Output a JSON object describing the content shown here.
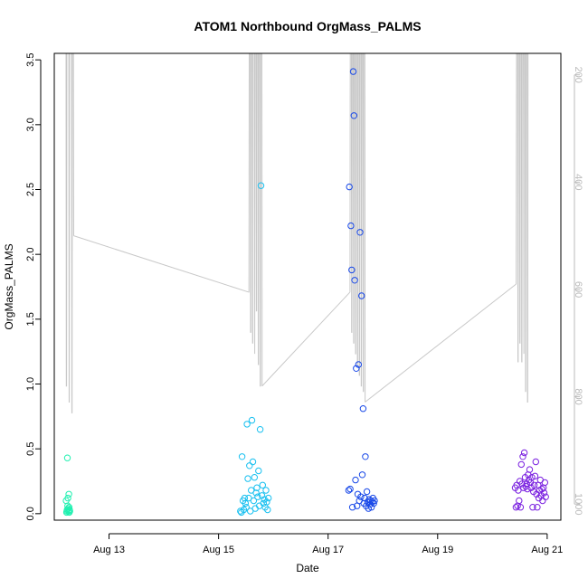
{
  "chart_data": {
    "type": "scatter",
    "title": "ATOM1 Northbound OrgMass_PALMS",
    "xlabel": "Date",
    "ylabel": "OrgMass_PALMS",
    "x_ticks": [
      "Aug 13",
      "Aug 15",
      "Aug 17",
      "Aug 19",
      "Aug 21"
    ],
    "y_ticks": [
      "0.0",
      "0.5",
      "1.0",
      "1.5",
      "2.0",
      "2.5",
      "3.0",
      "3.5"
    ],
    "y2_ticks": [
      "200",
      "400",
      "600",
      "800",
      "1000"
    ],
    "xlim": [
      "2016-08-12T00:00",
      "2016-08-21T06:00"
    ],
    "ylim": [
      -0.05,
      3.55
    ],
    "y2lim": [
      1030,
      160
    ],
    "y2_reversed": true,
    "grid": false,
    "colors": {
      "axis": "#000000",
      "secondary_axis": "#bbbbbb",
      "altitude_line": "#c8c8c8",
      "series": [
        "#00ffc0",
        "#00c8ff",
        "#0040ff",
        "#8000ff"
      ]
    },
    "series": [
      {
        "color": "#20f0b0",
        "x": [
          "2016-08-12T05:12",
          "2016-08-12T05:24",
          "2016-08-12T05:31",
          "2016-08-12T05:38",
          "2016-08-12T05:46",
          "2016-08-12T05:53",
          "2016-08-12T06:00",
          "2016-08-12T06:07",
          "2016-08-12T06:14",
          "2016-08-12T06:22",
          "2016-08-12T06:29",
          "2016-08-12T06:36",
          "2016-08-12T06:43",
          "2016-08-12T06:50"
        ],
        "y": [
          0.1,
          0.01,
          0.02,
          0.03,
          0.43,
          0.06,
          0.12,
          0.04,
          0.02,
          0.15,
          0.05,
          0.01,
          0.03,
          0.02
        ]
      },
      {
        "color": "#18c0f0",
        "x": [
          "2016-08-15T09:36",
          "2016-08-15T09:58",
          "2016-08-15T10:19",
          "2016-08-15T10:41",
          "2016-08-15T11:02",
          "2016-08-15T11:24",
          "2016-08-15T11:46",
          "2016-08-15T12:07",
          "2016-08-15T12:29",
          "2016-08-15T12:50",
          "2016-08-15T13:12",
          "2016-08-15T13:34",
          "2016-08-15T13:55",
          "2016-08-15T14:17",
          "2016-08-15T14:38",
          "2016-08-15T15:00",
          "2016-08-15T15:22",
          "2016-08-15T15:43",
          "2016-08-15T16:05",
          "2016-08-15T16:26",
          "2016-08-15T16:48",
          "2016-08-15T17:10",
          "2016-08-15T17:31",
          "2016-08-15T17:53",
          "2016-08-15T18:14",
          "2016-08-15T18:36",
          "2016-08-15T18:58",
          "2016-08-15T19:19",
          "2016-08-15T19:41",
          "2016-08-15T20:02",
          "2016-08-15T20:24",
          "2016-08-15T20:46",
          "2016-08-15T21:07",
          "2016-08-15T21:29",
          "2016-08-15T21:50"
        ],
        "y": [
          0.02,
          0.01,
          0.44,
          0.1,
          0.03,
          0.12,
          0.08,
          0.05,
          0.69,
          0.27,
          0.12,
          0.37,
          0.02,
          0.18,
          0.72,
          0.4,
          0.1,
          0.28,
          0.04,
          0.16,
          0.2,
          0.13,
          0.33,
          0.06,
          0.65,
          2.53,
          0.14,
          0.22,
          0.08,
          0.11,
          0.05,
          0.18,
          0.09,
          0.03,
          0.12
        ]
      },
      {
        "color": "#1848e8",
        "x": [
          "2016-08-17T09:00",
          "2016-08-17T09:20",
          "2016-08-17T09:40",
          "2016-08-17T10:00",
          "2016-08-17T10:20",
          "2016-08-17T10:40",
          "2016-08-17T11:00",
          "2016-08-17T11:20",
          "2016-08-17T11:40",
          "2016-08-17T12:00",
          "2016-08-17T12:20",
          "2016-08-17T12:40",
          "2016-08-17T13:00",
          "2016-08-17T13:20",
          "2016-08-17T13:40",
          "2016-08-17T14:00",
          "2016-08-17T14:20",
          "2016-08-17T14:40",
          "2016-08-17T15:00",
          "2016-08-17T15:20",
          "2016-08-17T15:40",
          "2016-08-17T16:00",
          "2016-08-17T16:20",
          "2016-08-17T16:40",
          "2016-08-17T17:00",
          "2016-08-17T17:20",
          "2016-08-17T17:40",
          "2016-08-17T18:00",
          "2016-08-17T18:20",
          "2016-08-17T18:40",
          "2016-08-17T19:00",
          "2016-08-17T19:20",
          "2016-08-17T19:40",
          "2016-08-17T20:00",
          "2016-08-17T20:20"
        ],
        "y": [
          0.18,
          2.52,
          0.19,
          2.22,
          1.88,
          0.05,
          3.41,
          3.07,
          1.8,
          0.26,
          1.12,
          0.06,
          0.15,
          1.15,
          0.1,
          2.17,
          0.13,
          1.68,
          0.3,
          0.81,
          0.08,
          0.12,
          0.44,
          0.06,
          0.17,
          0.09,
          0.04,
          0.11,
          0.07,
          0.1,
          0.05,
          0.09,
          0.12,
          0.08,
          0.1
        ]
      },
      {
        "color": "#7a20e0",
        "x": [
          "2016-08-20T10:00",
          "2016-08-20T10:20",
          "2016-08-20T10:40",
          "2016-08-20T11:00",
          "2016-08-20T11:20",
          "2016-08-20T11:40",
          "2016-08-20T12:00",
          "2016-08-20T12:20",
          "2016-08-20T12:40",
          "2016-08-20T13:00",
          "2016-08-20T13:20",
          "2016-08-20T13:40",
          "2016-08-20T14:00",
          "2016-08-20T14:20",
          "2016-08-20T14:40",
          "2016-08-20T15:00",
          "2016-08-20T15:20",
          "2016-08-20T15:40",
          "2016-08-20T16:00",
          "2016-08-20T16:20",
          "2016-08-20T16:40",
          "2016-08-20T17:00",
          "2016-08-20T17:20",
          "2016-08-20T17:40",
          "2016-08-20T18:00",
          "2016-08-20T18:20",
          "2016-08-20T18:40",
          "2016-08-20T19:00",
          "2016-08-20T19:20",
          "2016-08-20T19:40",
          "2016-08-20T20:00",
          "2016-08-20T20:20",
          "2016-08-20T20:40",
          "2016-08-20T21:00",
          "2016-08-20T21:20",
          "2016-08-20T21:40",
          "2016-08-20T22:00",
          "2016-08-20T22:20",
          "2016-08-20T22:40",
          "2016-08-20T23:00",
          "2016-08-20T23:20"
        ],
        "y": [
          0.2,
          0.05,
          0.22,
          0.06,
          0.18,
          0.1,
          0.25,
          0.05,
          0.38,
          0.23,
          0.44,
          0.2,
          0.47,
          0.28,
          0.21,
          0.23,
          0.19,
          0.3,
          0.26,
          0.34,
          0.24,
          0.2,
          0.28,
          0.05,
          0.17,
          0.22,
          0.29,
          0.4,
          0.15,
          0.05,
          0.22,
          0.12,
          0.18,
          0.26,
          0.14,
          0.19,
          0.1,
          0.2,
          0.16,
          0.24,
          0.13
        ]
      }
    ],
    "altitude": {
      "name": "",
      "segments": [
        {
          "x": [
            "2016-08-12T04:36",
            "2016-08-12T04:48",
            "2016-08-12T04:55",
            "2016-08-12T05:02",
            "2016-08-12T05:10",
            "2016-08-12T05:17",
            "2016-08-12T05:24",
            "2016-08-12T05:31",
            "2016-08-12T05:38",
            "2016-08-12T05:46",
            "2016-08-12T05:53",
            "2016-08-12T06:00",
            "2016-08-12T06:07",
            "2016-08-12T06:14",
            "2016-08-12T06:22",
            "2016-08-12T06:29",
            "2016-08-12T06:36",
            "2016-08-12T06:43",
            "2016-08-12T06:50",
            "2016-08-12T06:58",
            "2016-08-12T07:05",
            "2016-08-12T07:12",
            "2016-08-12T07:19",
            "2016-08-12T07:26",
            "2016-08-12T07:34",
            "2016-08-12T07:41",
            "2016-08-12T07:48",
            "2016-08-12T07:55",
            "2016-08-12T08:02",
            "2016-08-12T08:10",
            "2016-08-12T08:17",
            "2016-08-12T08:24",
            "2016-08-12T08:31"
          ],
          "y": [
            140,
            140,
            140,
            140,
            140,
            780,
            780,
            140,
            140,
            140,
            140,
            140,
            140,
            140,
            140,
            810,
            810,
            140,
            140,
            140,
            140,
            140,
            140,
            140,
            140,
            830,
            830,
            140,
            140,
            140,
            140,
            140,
            500
          ]
        },
        {
          "x": [
            "2016-08-15T13:12",
            "2016-08-15T13:19",
            "2016-08-15T13:26",
            "2016-08-15T13:34",
            "2016-08-15T13:41",
            "2016-08-15T13:48",
            "2016-08-15T13:55",
            "2016-08-15T14:02",
            "2016-08-15T14:10",
            "2016-08-15T14:17",
            "2016-08-15T14:24",
            "2016-08-15T14:31",
            "2016-08-15T14:38",
            "2016-08-15T14:46",
            "2016-08-15T14:53",
            "2016-08-15T15:00",
            "2016-08-15T15:07",
            "2016-08-15T15:14",
            "2016-08-15T15:22",
            "2016-08-15T15:29",
            "2016-08-15T15:36",
            "2016-08-15T15:43",
            "2016-08-15T15:50",
            "2016-08-15T15:58",
            "2016-08-15T16:05",
            "2016-08-15T16:12",
            "2016-08-15T16:19",
            "2016-08-15T16:26",
            "2016-08-15T16:34",
            "2016-08-15T16:41",
            "2016-08-15T16:48",
            "2016-08-15T16:55",
            "2016-08-15T17:02",
            "2016-08-15T17:10",
            "2016-08-15T17:17",
            "2016-08-15T17:24",
            "2016-08-15T17:31",
            "2016-08-15T17:38",
            "2016-08-15T17:46",
            "2016-08-15T17:53",
            "2016-08-15T18:00",
            "2016-08-15T18:07",
            "2016-08-15T18:14",
            "2016-08-15T18:22",
            "2016-08-15T18:29",
            "2016-08-15T18:36",
            "2016-08-15T18:43",
            "2016-08-15T18:50",
            "2016-08-15T18:58",
            "2016-08-15T19:05"
          ],
          "y": [
            605,
            605,
            140,
            140,
            140,
            140,
            140,
            680,
            680,
            140,
            140,
            140,
            140,
            140,
            700,
            700,
            140,
            140,
            140,
            140,
            140,
            150,
            720,
            140,
            140,
            140,
            140,
            140,
            640,
            640,
            140,
            140,
            140,
            140,
            140,
            740,
            740,
            140,
            140,
            140,
            140,
            140,
            780,
            780,
            140,
            140,
            140,
            140,
            140,
            780
          ]
        },
        {
          "x": [
            "2016-08-17T09:36",
            "2016-08-17T09:43",
            "2016-08-17T09:50",
            "2016-08-17T09:58",
            "2016-08-17T10:05",
            "2016-08-17T10:12",
            "2016-08-17T10:19",
            "2016-08-17T10:26",
            "2016-08-17T10:34",
            "2016-08-17T10:41",
            "2016-08-17T10:48",
            "2016-08-17T10:55",
            "2016-08-17T11:02",
            "2016-08-17T11:10",
            "2016-08-17T11:17",
            "2016-08-17T11:24",
            "2016-08-17T11:31",
            "2016-08-17T11:38",
            "2016-08-17T11:46",
            "2016-08-17T11:53",
            "2016-08-17T12:00",
            "2016-08-17T12:07",
            "2016-08-17T12:14",
            "2016-08-17T12:22",
            "2016-08-17T12:29",
            "2016-08-17T12:36",
            "2016-08-17T12:43",
            "2016-08-17T12:50",
            "2016-08-17T12:58",
            "2016-08-17T13:05",
            "2016-08-17T13:12",
            "2016-08-17T13:19",
            "2016-08-17T13:26",
            "2016-08-17T13:34",
            "2016-08-17T13:41",
            "2016-08-17T13:48",
            "2016-08-17T13:55",
            "2016-08-17T14:02",
            "2016-08-17T14:10",
            "2016-08-17T14:17",
            "2016-08-17T14:24",
            "2016-08-17T14:31",
            "2016-08-17T14:38",
            "2016-08-17T14:46",
            "2016-08-17T14:53",
            "2016-08-17T15:00",
            "2016-08-17T15:07",
            "2016-08-17T15:14",
            "2016-08-17T15:22",
            "2016-08-17T15:29",
            "2016-08-17T15:36",
            "2016-08-17T15:43",
            "2016-08-17T15:50",
            "2016-08-17T15:58",
            "2016-08-17T16:05",
            "2016-08-17T16:12"
          ],
          "y": [
            605,
            140,
            140,
            140,
            140,
            140,
            680,
            680,
            140,
            140,
            140,
            140,
            140,
            700,
            700,
            140,
            140,
            140,
            140,
            140,
            720,
            720,
            140,
            140,
            140,
            140,
            140,
            740,
            740,
            140,
            140,
            140,
            140,
            140,
            760,
            760,
            140,
            140,
            140,
            140,
            140,
            780,
            780,
            140,
            140,
            140,
            140,
            140,
            790,
            790,
            140,
            140,
            140,
            140,
            140,
            810
          ]
        },
        {
          "x": [
            "2016-08-20T10:26",
            "2016-08-20T10:34",
            "2016-08-20T10:41",
            "2016-08-20T10:48",
            "2016-08-20T10:55",
            "2016-08-20T11:02",
            "2016-08-20T11:10",
            "2016-08-20T11:17",
            "2016-08-20T11:24",
            "2016-08-20T11:31",
            "2016-08-20T11:38",
            "2016-08-20T11:46",
            "2016-08-20T11:53",
            "2016-08-20T12:00",
            "2016-08-20T12:07",
            "2016-08-20T12:14",
            "2016-08-20T12:22",
            "2016-08-20T12:29",
            "2016-08-20T12:36",
            "2016-08-20T12:43",
            "2016-08-20T12:50",
            "2016-08-20T12:58",
            "2016-08-20T13:05",
            "2016-08-20T13:12",
            "2016-08-20T13:19",
            "2016-08-20T13:26",
            "2016-08-20T13:34",
            "2016-08-20T13:41",
            "2016-08-20T13:48",
            "2016-08-20T13:55",
            "2016-08-20T14:02",
            "2016-08-20T14:10",
            "2016-08-20T14:17",
            "2016-08-20T14:24",
            "2016-08-20T14:31",
            "2016-08-20T14:38",
            "2016-08-20T14:46",
            "2016-08-20T14:53",
            "2016-08-20T15:00",
            "2016-08-20T15:07",
            "2016-08-20T15:14",
            "2016-08-20T15:22",
            "2016-08-20T15:29",
            "2016-08-20T15:36",
            "2016-08-20T15:43",
            "2016-08-20T15:50"
          ],
          "y": [
            590,
            140,
            140,
            140,
            140,
            140,
            735,
            735,
            140,
            140,
            140,
            140,
            140,
            700,
            700,
            140,
            140,
            140,
            140,
            140,
            735,
            735,
            140,
            140,
            140,
            140,
            140,
            330,
            720,
            140,
            140,
            140,
            140,
            140,
            790,
            790,
            140,
            140,
            140,
            140,
            140,
            810,
            810,
            140,
            140,
            140
          ]
        }
      ],
      "connectors": [
        {
          "x": [
            "2016-08-12T08:31",
            "2016-08-15T13:12"
          ],
          "y": [
            500,
            605
          ]
        },
        {
          "x": [
            "2016-08-15T19:05",
            "2016-08-17T09:36"
          ],
          "y": [
            780,
            605
          ]
        },
        {
          "x": [
            "2016-08-17T16:12",
            "2016-08-20T10:26"
          ],
          "y": [
            810,
            590
          ]
        }
      ]
    }
  }
}
